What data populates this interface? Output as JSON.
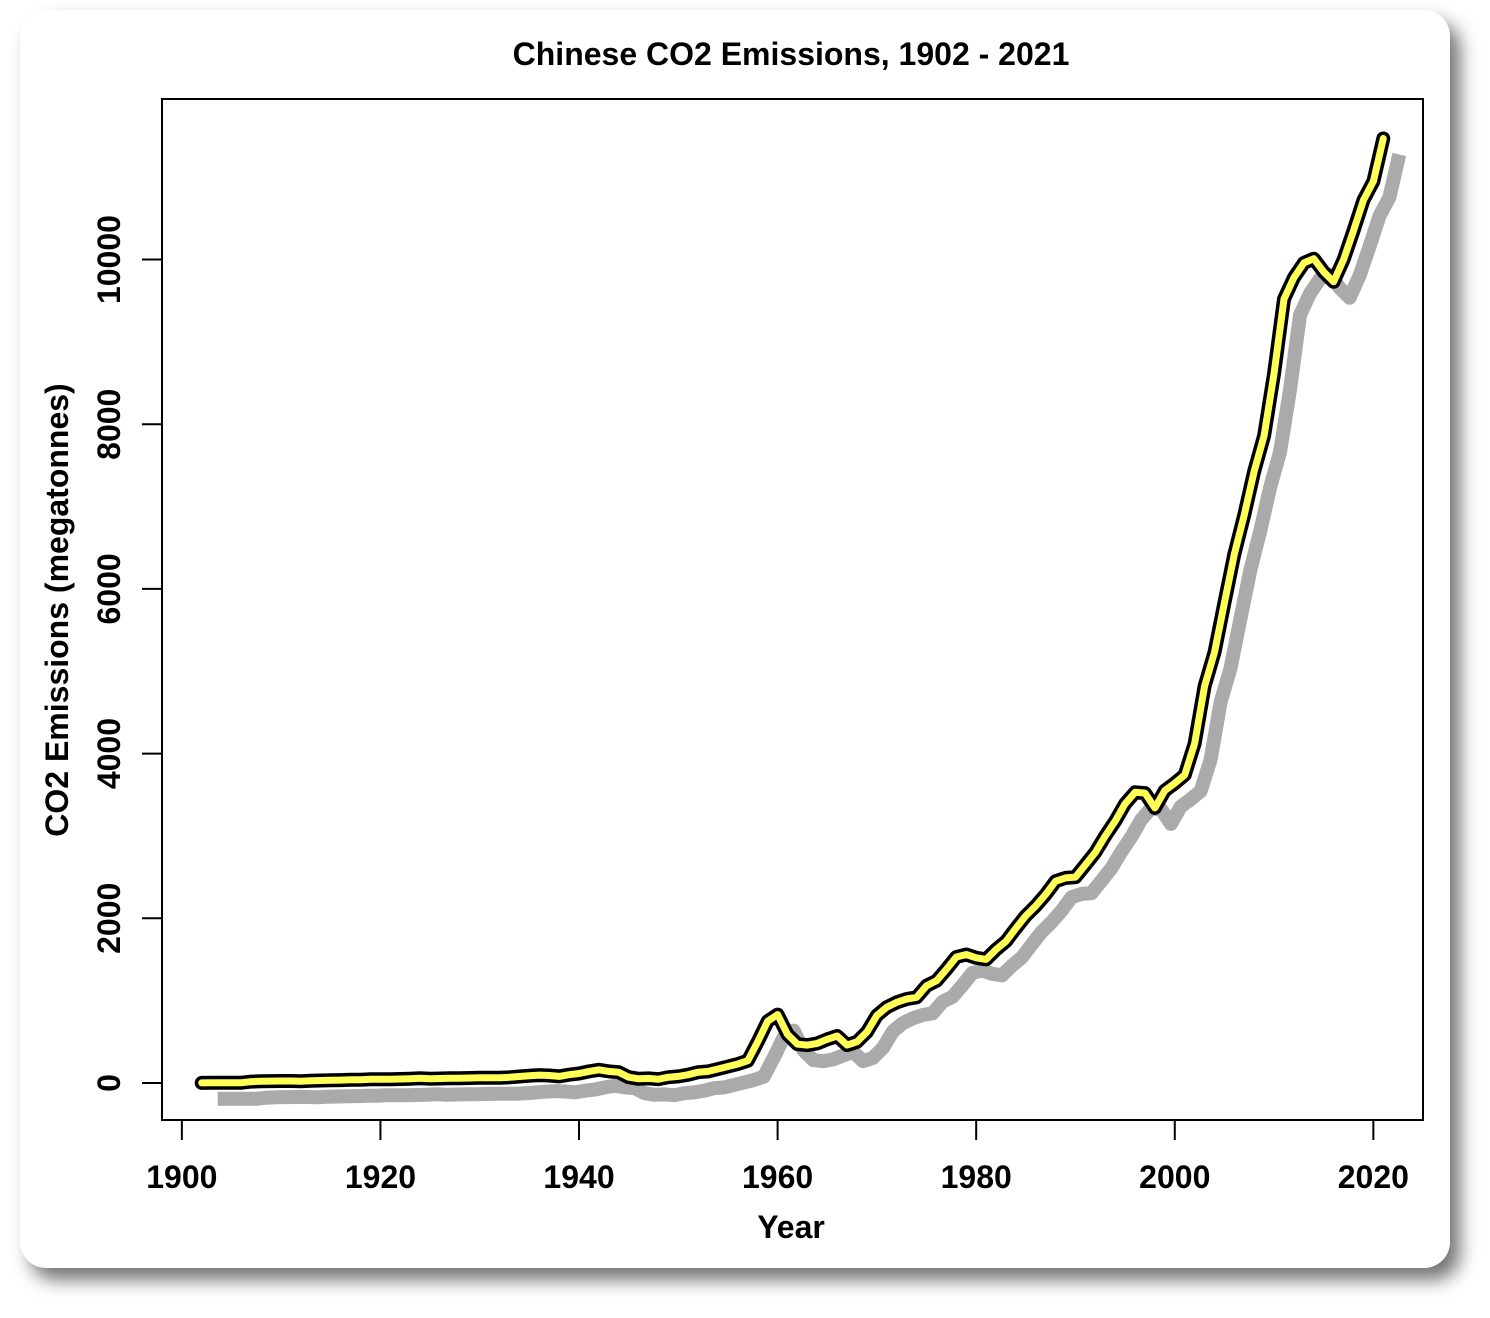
{
  "chart_data": {
    "type": "line",
    "title": "Chinese CO2 Emissions, 1902 - 2021",
    "xlabel": "Year",
    "ylabel": "CO2 Emissions (megatonnes)",
    "xlim": [
      1898,
      2025
    ],
    "ylim": [
      -450,
      11950
    ],
    "xticks": [
      1900,
      1920,
      1940,
      1960,
      1980,
      2000,
      2020
    ],
    "yticks": [
      0,
      2000,
      4000,
      6000,
      8000,
      10000
    ],
    "grid": false,
    "line_color": "#ffff55",
    "outline_color": "#000000",
    "shadow_color": "#aaaaaa",
    "x": [
      1902,
      1903,
      1904,
      1905,
      1906,
      1907,
      1908,
      1909,
      1910,
      1911,
      1912,
      1913,
      1914,
      1915,
      1916,
      1917,
      1918,
      1919,
      1920,
      1921,
      1922,
      1923,
      1924,
      1925,
      1926,
      1927,
      1928,
      1929,
      1930,
      1931,
      1932,
      1933,
      1934,
      1935,
      1936,
      1937,
      1938,
      1939,
      1940,
      1941,
      1942,
      1943,
      1944,
      1945,
      1946,
      1947,
      1948,
      1949,
      1950,
      1951,
      1952,
      1953,
      1954,
      1955,
      1956,
      1957,
      1958,
      1959,
      1960,
      1961,
      1962,
      1963,
      1964,
      1965,
      1966,
      1967,
      1968,
      1969,
      1970,
      1971,
      1972,
      1973,
      1974,
      1975,
      1976,
      1977,
      1978,
      1979,
      1980,
      1981,
      1982,
      1983,
      1984,
      1985,
      1986,
      1987,
      1988,
      1989,
      1990,
      1991,
      1992,
      1993,
      1994,
      1995,
      1996,
      1997,
      1998,
      1999,
      2000,
      2001,
      2002,
      2003,
      2004,
      2005,
      2006,
      2007,
      2008,
      2009,
      2010,
      2011,
      2012,
      2013,
      2014,
      2015,
      2016,
      2017,
      2018,
      2019,
      2020,
      2021
    ],
    "y": [
      1,
      2,
      2,
      3,
      3,
      16,
      20,
      22,
      24,
      24,
      20,
      26,
      30,
      32,
      34,
      38,
      40,
      44,
      46,
      44,
      48,
      52,
      56,
      52,
      54,
      56,
      58,
      60,
      62,
      64,
      62,
      68,
      78,
      88,
      95,
      90,
      80,
      100,
      115,
      140,
      160,
      140,
      130,
      70,
      50,
      55,
      45,
      70,
      80,
      100,
      130,
      140,
      170,
      200,
      230,
      270,
      500,
      750,
      830,
      590,
      470,
      460,
      480,
      530,
      570,
      460,
      500,
      620,
      820,
      920,
      980,
      1020,
      1040,
      1180,
      1240,
      1380,
      1530,
      1560,
      1520,
      1500,
      1620,
      1720,
      1880,
      2030,
      2150,
      2290,
      2450,
      2490,
      2500,
      2650,
      2800,
      3000,
      3180,
      3390,
      3530,
      3520,
      3340,
      3550,
      3640,
      3740,
      4120,
      4820,
      5230,
      5830,
      6420,
      6900,
      7430,
      7860,
      8620,
      9520,
      9780,
      9960,
      10010,
      9850,
      9730,
      10000,
      10350,
      10720,
      10950,
      11470
    ]
  }
}
